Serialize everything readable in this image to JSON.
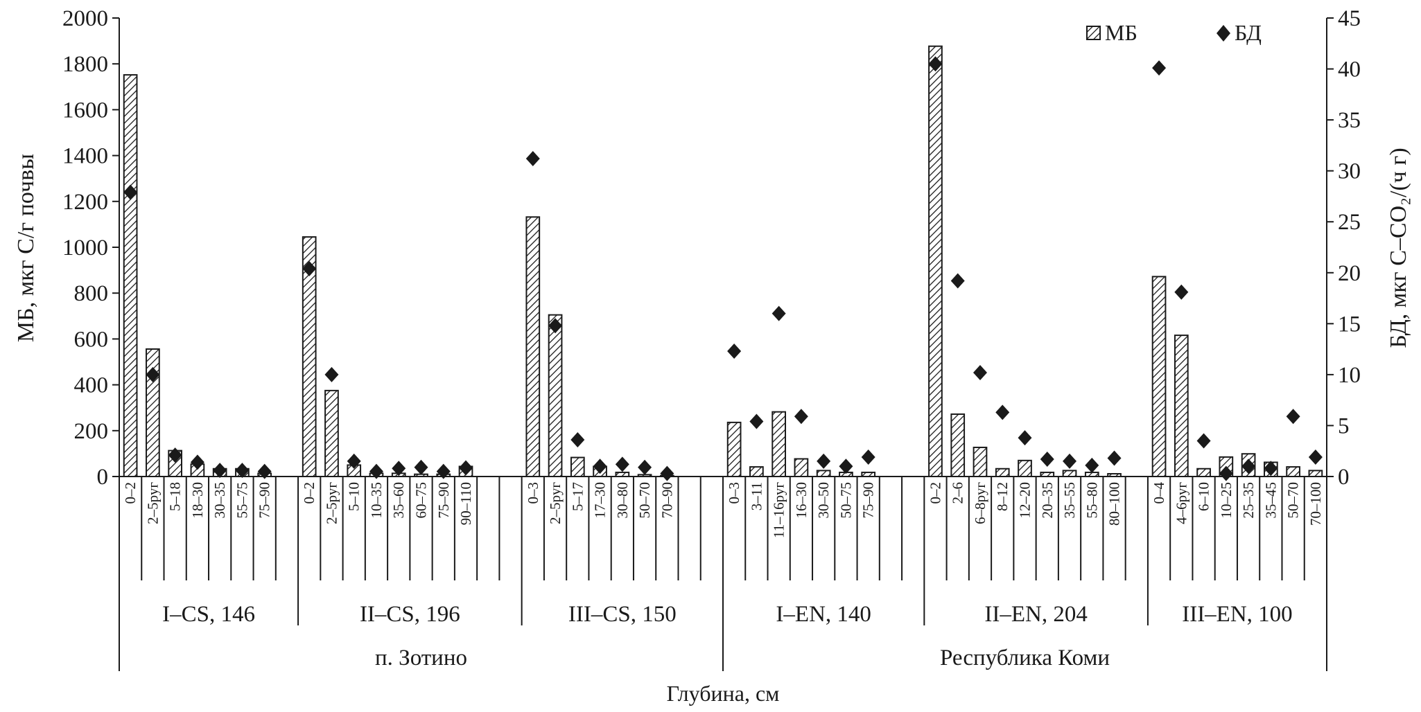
{
  "chart_data": {
    "type": "bar",
    "xlabel": "Глубина, см",
    "ylabel_left": "МБ, мкг С/г почвы",
    "ylabel_right": "БД, мкг С–СО₂/(ч г)",
    "ylim_left": [
      0,
      2000
    ],
    "yticks_left": [
      "0",
      "200",
      "400",
      "600",
      "800",
      "1000",
      "1200",
      "1400",
      "1600",
      "1800",
      "2000"
    ],
    "ylim_right": [
      0,
      45
    ],
    "yticks_right": [
      "0",
      "5",
      "10",
      "15",
      "20",
      "25",
      "30",
      "35",
      "40",
      "45"
    ],
    "grid": false,
    "legend_position": "top-right",
    "legend": [
      {
        "name": "МБ",
        "marker": "hatched-bar"
      },
      {
        "name": "БД",
        "marker": "diamond"
      }
    ],
    "sites": [
      "п. Зотино",
      "Республика Коми"
    ],
    "groups": [
      {
        "label": "I–CS, 146",
        "site": "п. Зотино",
        "categories": [
          "0–2",
          "2–5руг",
          "5–18",
          "18–30",
          "30–35",
          "55–75",
          "75–90"
        ],
        "mb": [
          1752,
          556,
          113,
          54,
          34,
          34,
          14
        ],
        "bd": [
          27.9,
          10.0,
          2.1,
          1.4,
          0.6,
          0.6,
          0.5
        ]
      },
      {
        "label": "II–CS, 196",
        "site": "п. Зотино",
        "categories": [
          "0–2",
          "2–5руг",
          "5–10",
          "10–35",
          "35–60",
          "60–75",
          "75–90",
          "90–110"
        ],
        "mb": [
          1045,
          375,
          50,
          14,
          14,
          10,
          10,
          44
        ],
        "bd": [
          20.4,
          10.0,
          1.5,
          0.5,
          0.8,
          0.9,
          0.5,
          0.85
        ]
      },
      {
        "label": "III–CS, 150",
        "site": "п. Зотино",
        "categories": [
          "0–3",
          "2–5руг",
          "5–17",
          "17–30",
          "30–80",
          "50–70",
          "70–90"
        ],
        "mb": [
          1132,
          705,
          83,
          44,
          18,
          8,
          4
        ],
        "bd": [
          31.2,
          14.8,
          3.6,
          1.0,
          1.2,
          0.9,
          0.3
        ]
      },
      {
        "label": "I–EN, 140",
        "site": "Республика Коми",
        "categories": [
          "0–3",
          "3–11",
          "11–16руг",
          "16–30",
          "30–50",
          "50–75",
          "75–90"
        ],
        "mb": [
          236,
          42,
          282,
          77,
          26,
          18,
          18
        ],
        "bd": [
          12.3,
          5.4,
          16.0,
          5.9,
          1.5,
          1.0,
          1.9
        ]
      },
      {
        "label": "II–EN, 204",
        "site": "Республика Коми",
        "categories": [
          "0–2",
          "2–6",
          "6–8руг",
          "8–12",
          "12–20",
          "20–35",
          "35–55",
          "55–80",
          "80–100"
        ],
        "mb": [
          1877,
          272,
          127,
          34,
          70,
          18,
          26,
          18,
          12
        ],
        "bd": [
          40.5,
          19.2,
          10.2,
          6.3,
          3.8,
          1.7,
          1.5,
          1.1,
          1.8
        ]
      },
      {
        "label": "III–EN, 100",
        "site": "Республика Коми",
        "categories": [
          "0–4",
          "4–6руг",
          "6–10",
          "10–25",
          "25–35",
          "35–45",
          "50–70",
          "70–100"
        ],
        "mb": [
          872,
          616,
          34,
          85,
          99,
          62,
          42,
          26
        ],
        "bd": [
          40.1,
          18.1,
          3.5,
          0.3,
          1.0,
          0.8,
          5.9,
          1.9
        ]
      }
    ],
    "colors": {
      "ink": "#1a1a1a",
      "background": "#ffffff"
    }
  }
}
